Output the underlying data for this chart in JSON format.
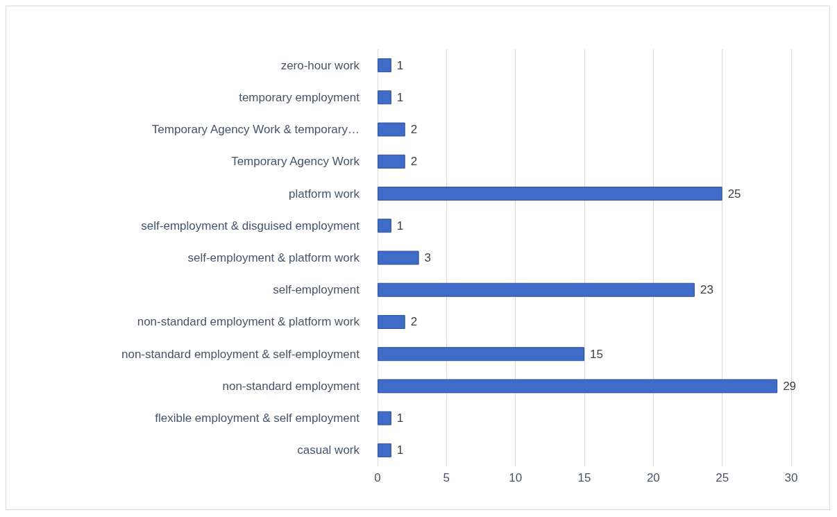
{
  "chart_data": {
    "type": "bar",
    "orientation": "horizontal",
    "categories": [
      "zero-hour work",
      "temporary employment",
      "Temporary Agency Work & temporary…",
      "Temporary Agency Work",
      "platform work",
      "self-employment & disguised employment",
      "self-employment & platform work",
      "self-employment",
      "non-standard employment & platform work",
      "non-standard employment & self-employment",
      "non-standard employment",
      "flexible employment & self employment",
      "casual work"
    ],
    "values": [
      1,
      1,
      2,
      2,
      25,
      1,
      3,
      23,
      2,
      15,
      29,
      1,
      1
    ],
    "color": "#3f6cc8",
    "xlim": [
      0,
      30
    ],
    "xticks": [
      0,
      5,
      10,
      15,
      20,
      25,
      30
    ],
    "grid": "x",
    "data_labels": true
  }
}
